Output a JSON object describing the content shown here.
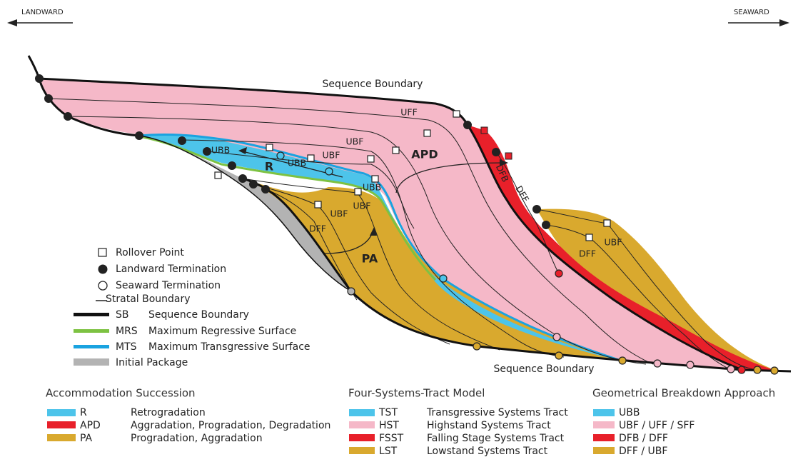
{
  "directions": {
    "landward": "LANDWARD",
    "seaward": "SEAWARD"
  },
  "diagram_labels": [
    "Sequence Boundary",
    "UFF",
    "UBF",
    "UBF",
    "UBB",
    "UBB",
    "R",
    "APD",
    "DFB",
    "DFF",
    "UBB",
    "UBF",
    "UBF",
    "DFF",
    "PA",
    "DFF",
    "UBF",
    "Sequence Boundary"
  ],
  "symbol_legend": [
    {
      "text": "Rollover Point"
    },
    {
      "text": "Landward Termination"
    },
    {
      "text": "Seaward Termination"
    },
    {
      "text": "Stratal Boundary"
    },
    {
      "code": "SB",
      "text": "Sequence Boundary"
    },
    {
      "code": "MRS",
      "text": "Maximum Regressive Surface"
    },
    {
      "code": "MTS",
      "text": "Maximum Transgressive Surface"
    },
    {
      "text": "Initial Package"
    }
  ],
  "accommodation_succession": {
    "title": "Accommodation Succession",
    "items": [
      {
        "code": "R",
        "text": "Retrogradation"
      },
      {
        "code": "APD",
        "text": "Aggradation, Progradation, Degradation"
      },
      {
        "code": "PA",
        "text": "Progradation, Aggradation"
      }
    ]
  },
  "four_systems_tract_model": {
    "title": "Four-Systems-Tract Model",
    "items": [
      {
        "code": "TST",
        "text": "Transgressive Systems Tract"
      },
      {
        "code": "HST",
        "text": "Highstand Systems Tract"
      },
      {
        "code": "FSST",
        "text": "Falling Stage Systems Tract"
      },
      {
        "code": "LST",
        "text": "Lowstand Systems Tract"
      }
    ]
  },
  "geometrical_breakdown_approach": {
    "title": "Geometrical Breakdown Approach",
    "items": [
      {
        "code": "UBB"
      },
      {
        "code": "UBF / UFF / SFF"
      },
      {
        "code": "DFB / DFF"
      },
      {
        "code": "DFF / UBF"
      }
    ]
  }
}
